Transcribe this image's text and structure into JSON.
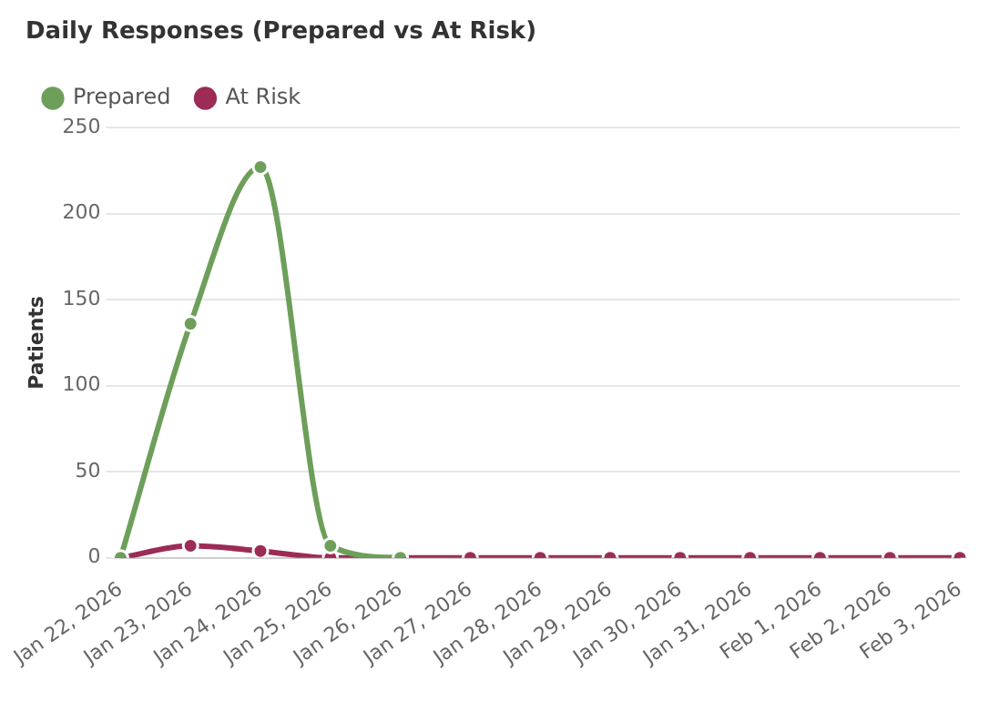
{
  "chart_data": {
    "type": "line",
    "title": "Daily Responses (Prepared vs At Risk)",
    "ylabel": "Patients",
    "categories": [
      "Jan 22, 2026",
      "Jan 23, 2026",
      "Jan 24, 2026",
      "Jan 25, 2026",
      "Jan 26, 2026",
      "Jan 27, 2026",
      "Jan 28, 2026",
      "Jan 29, 2026",
      "Jan 30, 2026",
      "Jan 31, 2026",
      "Feb 1, 2026",
      "Feb 2, 2026",
      "Feb 3, 2026"
    ],
    "series": [
      {
        "name": "Prepared",
        "color": "#6d9f5a",
        "values": [
          0,
          136,
          227,
          7,
          0,
          null,
          null,
          null,
          null,
          null,
          null,
          null,
          null
        ]
      },
      {
        "name": "At Risk",
        "color": "#9c2b56",
        "values": [
          0,
          7,
          4,
          0,
          0,
          0,
          0,
          0,
          0,
          0,
          0,
          0,
          0
        ]
      }
    ],
    "ylim": [
      0,
      250
    ],
    "yticks": [
      0,
      50,
      100,
      150,
      200,
      250
    ],
    "grid": "y",
    "legend": "top left",
    "marker": "circle"
  }
}
